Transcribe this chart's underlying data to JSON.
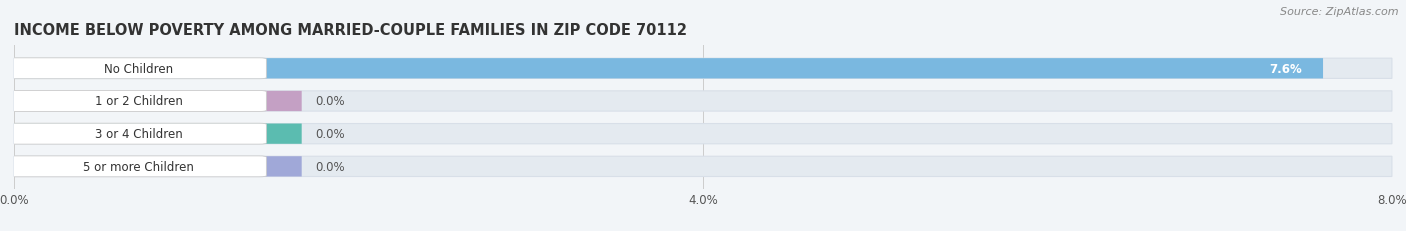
{
  "title": "INCOME BELOW POVERTY AMONG MARRIED-COUPLE FAMILIES IN ZIP CODE 70112",
  "source": "Source: ZipAtlas.com",
  "categories": [
    "No Children",
    "1 or 2 Children",
    "3 or 4 Children",
    "5 or more Children"
  ],
  "values": [
    7.6,
    0.0,
    0.0,
    0.0
  ],
  "bar_colors": [
    "#7ab8e0",
    "#c4a0c4",
    "#5bbcb0",
    "#a0a8d8"
  ],
  "xlim": [
    0,
    8.0
  ],
  "xticks": [
    0.0,
    4.0,
    8.0
  ],
  "xtick_labels": [
    "0.0%",
    "4.0%",
    "8.0%"
  ],
  "background_color": "#f2f5f8",
  "bar_bg_color": "#e4eaf0",
  "bar_bg_edge": "#d8dfe8",
  "title_fontsize": 10.5,
  "source_fontsize": 8,
  "label_fontsize": 8.5,
  "value_fontsize": 8.5,
  "tick_fontsize": 8.5
}
